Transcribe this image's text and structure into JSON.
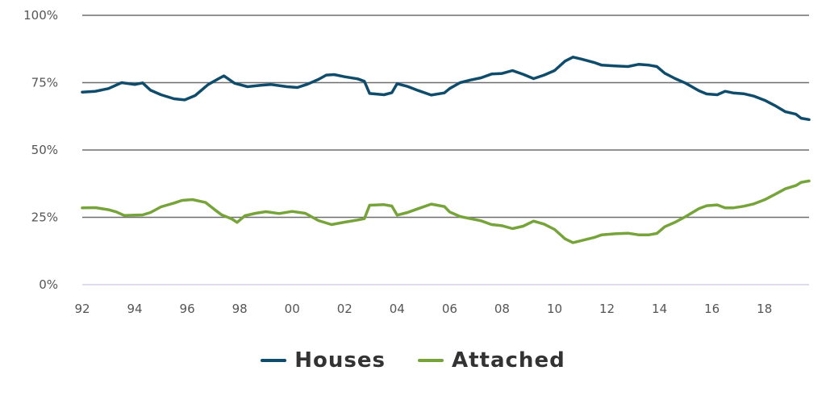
{
  "chart_data": {
    "type": "line",
    "title": "",
    "xlabel": "",
    "ylabel": "",
    "ylim": [
      0,
      100
    ],
    "xlim": [
      1992,
      2019.7
    ],
    "y_ticks": [
      {
        "value": 0,
        "label": "0%"
      },
      {
        "value": 25,
        "label": "25%"
      },
      {
        "value": 50,
        "label": "50%"
      },
      {
        "value": 75,
        "label": "75%"
      },
      {
        "value": 100,
        "label": "100%"
      }
    ],
    "x_ticks": [
      {
        "value": 1992,
        "label": "92"
      },
      {
        "value": 1994,
        "label": "94"
      },
      {
        "value": 1996,
        "label": "96"
      },
      {
        "value": 1998,
        "label": "98"
      },
      {
        "value": 2000,
        "label": "00"
      },
      {
        "value": 2002,
        "label": "02"
      },
      {
        "value": 2004,
        "label": "04"
      },
      {
        "value": 2006,
        "label": "06"
      },
      {
        "value": 2008,
        "label": "08"
      },
      {
        "value": 2010,
        "label": "10"
      },
      {
        "value": 2012,
        "label": "12"
      },
      {
        "value": 2014,
        "label": "14"
      },
      {
        "value": 2016,
        "label": "16"
      },
      {
        "value": 2018,
        "label": "18"
      }
    ],
    "grid": true,
    "legend_position": "bottom-center",
    "series": [
      {
        "name": "Houses",
        "color": "#0f4c6b",
        "points": [
          [
            1992.0,
            71.5
          ],
          [
            1992.5,
            71.8
          ],
          [
            1993.0,
            72.8
          ],
          [
            1993.5,
            75.0
          ],
          [
            1994.0,
            74.3
          ],
          [
            1994.3,
            74.9
          ],
          [
            1994.6,
            72.2
          ],
          [
            1995.0,
            70.5
          ],
          [
            1995.5,
            69.0
          ],
          [
            1995.9,
            68.6
          ],
          [
            1996.3,
            70.2
          ],
          [
            1996.8,
            74.3
          ],
          [
            1997.2,
            76.5
          ],
          [
            1997.4,
            77.5
          ],
          [
            1997.8,
            74.8
          ],
          [
            1998.3,
            73.5
          ],
          [
            1998.8,
            74.0
          ],
          [
            1999.2,
            74.3
          ],
          [
            1999.8,
            73.5
          ],
          [
            2000.2,
            73.2
          ],
          [
            2000.6,
            74.5
          ],
          [
            2001.0,
            76.2
          ],
          [
            2001.3,
            77.8
          ],
          [
            2001.6,
            78.0
          ],
          [
            2002.0,
            77.2
          ],
          [
            2002.5,
            76.4
          ],
          [
            2002.75,
            75.5
          ],
          [
            2002.95,
            71.0
          ],
          [
            2003.5,
            70.5
          ],
          [
            2003.8,
            71.3
          ],
          [
            2004.0,
            74.6
          ],
          [
            2004.4,
            73.6
          ],
          [
            2004.8,
            72.1
          ],
          [
            2005.3,
            70.4
          ],
          [
            2005.8,
            71.2
          ],
          [
            2006.0,
            72.8
          ],
          [
            2006.4,
            75.0
          ],
          [
            2006.8,
            76.0
          ],
          [
            2007.2,
            76.8
          ],
          [
            2007.6,
            78.2
          ],
          [
            2008.0,
            78.4
          ],
          [
            2008.4,
            79.5
          ],
          [
            2008.8,
            78.1
          ],
          [
            2009.2,
            76.5
          ],
          [
            2009.6,
            77.8
          ],
          [
            2010.0,
            79.5
          ],
          [
            2010.4,
            83.0
          ],
          [
            2010.7,
            84.5
          ],
          [
            2011.0,
            83.8
          ],
          [
            2011.5,
            82.5
          ],
          [
            2011.8,
            81.5
          ],
          [
            2012.3,
            81.2
          ],
          [
            2012.8,
            81.0
          ],
          [
            2013.2,
            81.8
          ],
          [
            2013.6,
            81.5
          ],
          [
            2013.9,
            81.0
          ],
          [
            2014.2,
            78.5
          ],
          [
            2014.6,
            76.5
          ],
          [
            2015.0,
            74.8
          ],
          [
            2015.5,
            72.0
          ],
          [
            2015.8,
            70.8
          ],
          [
            2016.2,
            70.5
          ],
          [
            2016.5,
            71.8
          ],
          [
            2016.8,
            71.2
          ],
          [
            2017.2,
            70.9
          ],
          [
            2017.6,
            70.0
          ],
          [
            2018.0,
            68.5
          ],
          [
            2018.4,
            66.5
          ],
          [
            2018.8,
            64.2
          ],
          [
            2019.2,
            63.3
          ],
          [
            2019.4,
            61.8
          ],
          [
            2019.7,
            61.3
          ]
        ]
      },
      {
        "name": "Attached",
        "color": "#76a33a",
        "points": [
          [
            1992.0,
            28.5
          ],
          [
            1992.5,
            28.6
          ],
          [
            1993.0,
            27.8
          ],
          [
            1993.3,
            27.0
          ],
          [
            1993.6,
            25.7
          ],
          [
            1994.0,
            25.8
          ],
          [
            1994.3,
            25.9
          ],
          [
            1994.6,
            26.8
          ],
          [
            1995.0,
            28.9
          ],
          [
            1995.5,
            30.3
          ],
          [
            1995.8,
            31.3
          ],
          [
            1996.2,
            31.6
          ],
          [
            1996.7,
            30.5
          ],
          [
            1997.0,
            28.2
          ],
          [
            1997.3,
            26.0
          ],
          [
            1997.7,
            24.4
          ],
          [
            1997.9,
            23.1
          ],
          [
            1998.2,
            25.6
          ],
          [
            1998.6,
            26.5
          ],
          [
            1999.0,
            27.1
          ],
          [
            1999.5,
            26.4
          ],
          [
            2000.0,
            27.2
          ],
          [
            2000.5,
            26.5
          ],
          [
            2001.0,
            23.8
          ],
          [
            2001.5,
            22.3
          ],
          [
            2002.0,
            23.2
          ],
          [
            2002.5,
            24.0
          ],
          [
            2002.75,
            24.5
          ],
          [
            2002.95,
            29.5
          ],
          [
            2003.5,
            29.7
          ],
          [
            2003.8,
            29.2
          ],
          [
            2004.0,
            25.8
          ],
          [
            2004.4,
            26.8
          ],
          [
            2004.8,
            28.2
          ],
          [
            2005.3,
            29.9
          ],
          [
            2005.8,
            29.0
          ],
          [
            2006.0,
            27.0
          ],
          [
            2006.4,
            25.3
          ],
          [
            2006.8,
            24.5
          ],
          [
            2007.2,
            23.7
          ],
          [
            2007.6,
            22.3
          ],
          [
            2008.0,
            21.9
          ],
          [
            2008.4,
            20.8
          ],
          [
            2008.8,
            21.7
          ],
          [
            2009.2,
            23.6
          ],
          [
            2009.6,
            22.5
          ],
          [
            2010.0,
            20.5
          ],
          [
            2010.4,
            17.0
          ],
          [
            2010.7,
            15.6
          ],
          [
            2011.0,
            16.3
          ],
          [
            2011.5,
            17.5
          ],
          [
            2011.8,
            18.5
          ],
          [
            2012.3,
            18.9
          ],
          [
            2012.8,
            19.1
          ],
          [
            2013.2,
            18.5
          ],
          [
            2013.6,
            18.5
          ],
          [
            2013.9,
            19.0
          ],
          [
            2014.2,
            21.5
          ],
          [
            2014.6,
            23.2
          ],
          [
            2015.0,
            25.3
          ],
          [
            2015.5,
            28.2
          ],
          [
            2015.8,
            29.3
          ],
          [
            2016.2,
            29.6
          ],
          [
            2016.5,
            28.5
          ],
          [
            2016.8,
            28.5
          ],
          [
            2017.2,
            29.1
          ],
          [
            2017.6,
            30.0
          ],
          [
            2018.0,
            31.5
          ],
          [
            2018.4,
            33.5
          ],
          [
            2018.8,
            35.6
          ],
          [
            2019.2,
            36.8
          ],
          [
            2019.4,
            38.0
          ],
          [
            2019.7,
            38.5
          ]
        ]
      }
    ]
  }
}
